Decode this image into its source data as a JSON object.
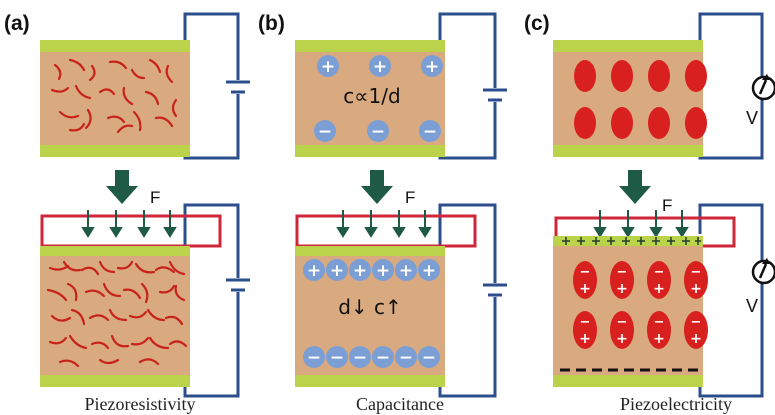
{
  "panels": [
    {
      "label": "(a)",
      "caption": "Piezoresistivity"
    },
    {
      "label": "(b)",
      "caption": "Capacitance",
      "equation_top": "c∝1/d",
      "equation_bottom": "d↓  c↑"
    },
    {
      "label": "(c)",
      "caption": "Piezoelectricity",
      "meter_label_top": "V",
      "meter_label_bottom": "V"
    }
  ],
  "force_label": "F",
  "symbols": {
    "plus": "+",
    "minus": "−"
  },
  "colors": {
    "body": "#D9A97F",
    "electrode": "#BBD34A",
    "wire": "#2B4E8C",
    "fiber": "#C8231B",
    "ion": "#7B9FD4",
    "dipole": "#D8201E",
    "force_arrow": "#1E5A45",
    "press_plate": "#D0263A"
  }
}
